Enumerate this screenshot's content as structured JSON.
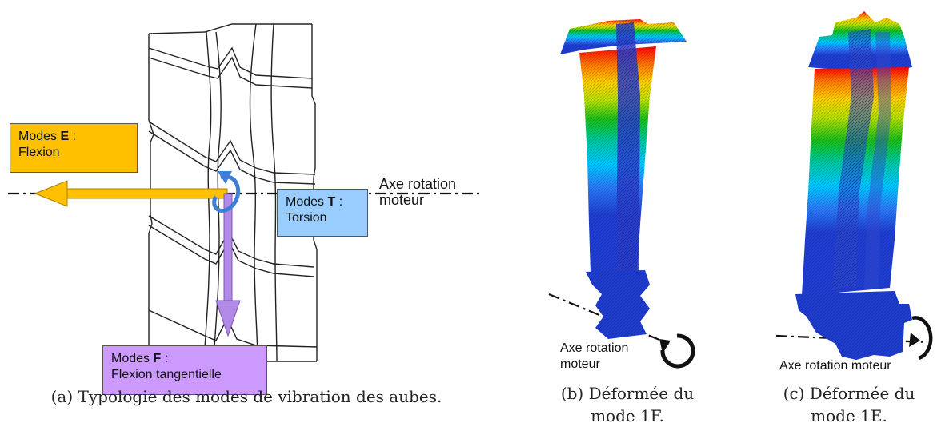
{
  "panel_a": {
    "modes_e": {
      "title": "Modes ",
      "letter": "E",
      "suffix": " :",
      "desc": "Flexion"
    },
    "modes_t": {
      "title": "Modes ",
      "letter": "T",
      "suffix": " :",
      "desc": "Torsion"
    },
    "modes_f": {
      "title": "Modes ",
      "letter": "F",
      "suffix": " :",
      "desc": "Flexion tangentielle"
    },
    "axis_label_line1": "Axe rotation",
    "axis_label_line2": "moteur",
    "caption": "(a) Typologie des modes de vibration des aubes."
  },
  "panel_b": {
    "axis_label_line1": "Axe rotation",
    "axis_label_line2": "moteur",
    "caption_line1": "(b) Déformée du",
    "caption_line2": "mode 1F."
  },
  "panel_c": {
    "axis_label": "Axe rotation moteur",
    "caption_line1": "(c) Déformée du",
    "caption_line2": "mode 1E."
  },
  "colors": {
    "modes_e_fill": "#ffc000",
    "modes_t_fill": "#99ccff",
    "modes_f_fill": "#cc99ff",
    "arrow_e": "#ffc000",
    "arrow_f": "#b18ae8",
    "arrow_t": "#3d7fd6",
    "mesh_blue": "#1f3ecf"
  }
}
